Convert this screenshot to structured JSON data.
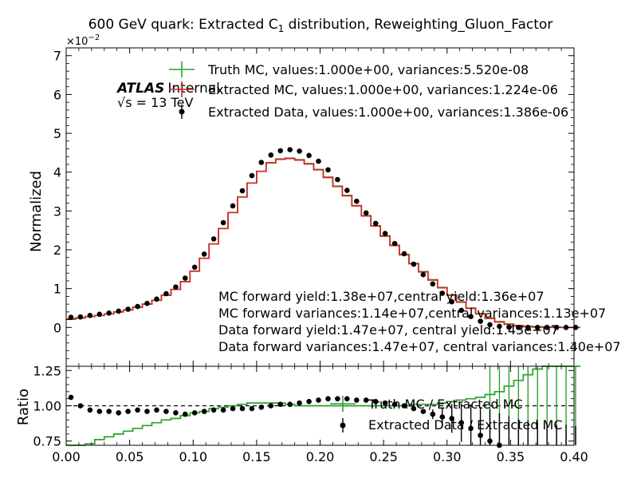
{
  "chart_data": [
    {
      "type": "line",
      "panel": "main",
      "title_pre": "600 GeV quark: Extracted C",
      "title_sub": "1",
      "title_post": " distribution, Reweighting_Gluon_Factor",
      "ylabel": "Normalized",
      "y_multiplier": {
        "base": "×10",
        "exp": "−2"
      },
      "xlim": [
        0.0,
        0.4
      ],
      "ylim": [
        -1.0,
        7.2
      ],
      "yticks": [
        0,
        1,
        2,
        3,
        4,
        5,
        6,
        7
      ],
      "ytick_labels": [
        "0",
        "1",
        "2",
        "3",
        "4",
        "5",
        "6",
        "7"
      ],
      "atlas_label": "ATLAS",
      "atlas_sub": "Internal",
      "energy_label": "√s = 13 TeV",
      "legend_position": "top",
      "legend": [
        "Truth MC, values:1.000e+00, variances:5.520e-08",
        "Extracted MC, values:1.000e+00, variances:1.224e-06",
        "Extracted Data, values:1.000e+00, variances:1.386e-06"
      ],
      "annotations": [
        "MC forward yield:1.38e+07,central yield:1.36e+07",
        "MC forward variances:1.14e+07,central variances:1.13e+07",
        "Data forward yield:1.47e+07, central yield:1.43e+07",
        "Data forward variances:1.47e+07, central variances:1.40e+07"
      ],
      "bin_width": 0.0075,
      "bin_start": 0.0,
      "series": [
        {
          "name": "Truth MC",
          "style": "step",
          "color": "#2ca02c",
          "values": [
            0.21,
            0.24,
            0.28,
            0.31,
            0.35,
            0.4,
            0.45,
            0.52,
            0.6,
            0.7,
            0.83,
            0.98,
            1.18,
            1.45,
            1.78,
            2.15,
            2.55,
            2.96,
            3.36,
            3.72,
            4.02,
            4.24,
            4.34,
            4.36,
            4.32,
            4.22,
            4.07,
            3.87,
            3.64,
            3.4,
            3.14,
            2.88,
            2.62,
            2.36,
            2.12,
            1.88,
            1.65,
            1.44,
            1.23,
            1.03,
            0.84,
            0.66,
            0.5,
            0.36,
            0.24,
            0.15,
            0.09,
            0.05,
            0.03,
            0.02,
            0.01,
            0.01,
            0.0,
            0.0
          ]
        },
        {
          "name": "Extracted MC",
          "style": "step",
          "color": "#d62728",
          "values": [
            0.22,
            0.25,
            0.28,
            0.31,
            0.35,
            0.4,
            0.45,
            0.52,
            0.6,
            0.7,
            0.83,
            0.98,
            1.18,
            1.45,
            1.78,
            2.15,
            2.55,
            2.96,
            3.36,
            3.72,
            4.02,
            4.24,
            4.33,
            4.35,
            4.31,
            4.21,
            4.06,
            3.86,
            3.63,
            3.39,
            3.13,
            2.87,
            2.61,
            2.35,
            2.11,
            1.87,
            1.64,
            1.43,
            1.22,
            1.02,
            0.83,
            0.65,
            0.49,
            0.35,
            0.23,
            0.14,
            0.08,
            0.04,
            0.02,
            0.01,
            0.0,
            0.0,
            0.0,
            0.0
          ]
        },
        {
          "name": "Extracted Data",
          "style": "points",
          "color": "#000000",
          "values": [
            0.26,
            0.27,
            0.31,
            0.34,
            0.37,
            0.42,
            0.47,
            0.54,
            0.62,
            0.73,
            0.87,
            1.04,
            1.27,
            1.55,
            1.89,
            2.28,
            2.7,
            3.13,
            3.52,
            3.91,
            4.25,
            4.44,
            4.55,
            4.58,
            4.54,
            4.43,
            4.28,
            4.06,
            3.81,
            3.53,
            3.25,
            2.95,
            2.68,
            2.42,
            2.16,
            1.9,
            1.63,
            1.36,
            1.12,
            0.88,
            0.66,
            0.44,
            0.28,
            0.16,
            0.07,
            0.03,
            0.01,
            0.0,
            0.0,
            0.0,
            0.0,
            0.0,
            0.0,
            0.0
          ]
        }
      ]
    },
    {
      "type": "line",
      "panel": "ratio",
      "xlabel": "",
      "ylabel": "Ratio",
      "xlim": [
        0.0,
        0.4
      ],
      "ylim": [
        0.72,
        1.28
      ],
      "xticks": [
        0.0,
        0.05,
        0.1,
        0.15,
        0.2,
        0.25,
        0.3,
        0.35,
        0.4
      ],
      "xtick_labels": [
        "0.00",
        "0.05",
        "0.10",
        "0.15",
        "0.20",
        "0.25",
        "0.30",
        "0.35",
        "0.40"
      ],
      "yticks": [
        0.75,
        1.0,
        1.25
      ],
      "ytick_labels": [
        "0.75",
        "1.00",
        "1.25"
      ],
      "reference_line": 1.0,
      "legend": [
        "Truth MC / Extracted MC",
        "Extracted Data / Extracted MC"
      ],
      "series": [
        {
          "name": "Truth MC / Extracted MC",
          "style": "step",
          "color": "#2ca02c",
          "values": [
            0.7,
            0.71,
            0.73,
            0.76,
            0.78,
            0.8,
            0.82,
            0.84,
            0.86,
            0.88,
            0.9,
            0.91,
            0.93,
            0.95,
            0.96,
            0.98,
            0.99,
            1.0,
            1.01,
            1.02,
            1.02,
            1.02,
            1.02,
            1.01,
            1.0,
            1.0,
            1.0,
            1.0,
            1.0,
            1.0,
            1.0,
            1.0,
            1.0,
            1.0,
            1.0,
            1.0,
            1.01,
            1.01,
            1.01,
            1.02,
            1.03,
            1.04,
            1.05,
            1.06,
            1.08,
            1.1,
            1.14,
            1.18,
            1.22,
            1.26,
            1.3,
            1.3,
            1.3,
            1.3
          ],
          "errors_from_bin": 44
        },
        {
          "name": "Extracted Data / Extracted MC",
          "style": "points",
          "color": "#000000",
          "values": [
            1.06,
            1.0,
            0.97,
            0.96,
            0.96,
            0.95,
            0.96,
            0.97,
            0.96,
            0.97,
            0.96,
            0.95,
            0.94,
            0.95,
            0.96,
            0.97,
            0.97,
            0.98,
            0.98,
            0.98,
            0.99,
            1.0,
            1.01,
            1.01,
            1.02,
            1.03,
            1.04,
            1.05,
            1.05,
            1.05,
            1.04,
            1.04,
            1.03,
            1.02,
            1.01,
            1.0,
            0.98,
            0.96,
            0.94,
            0.92,
            0.91,
            0.88,
            0.84,
            0.79,
            0.75,
            0.72,
            0.7,
            0.68,
            0.67,
            0.66,
            0.65,
            0.64,
            0.64,
            0.63
          ],
          "errors_from_bin": 38
        }
      ]
    }
  ]
}
